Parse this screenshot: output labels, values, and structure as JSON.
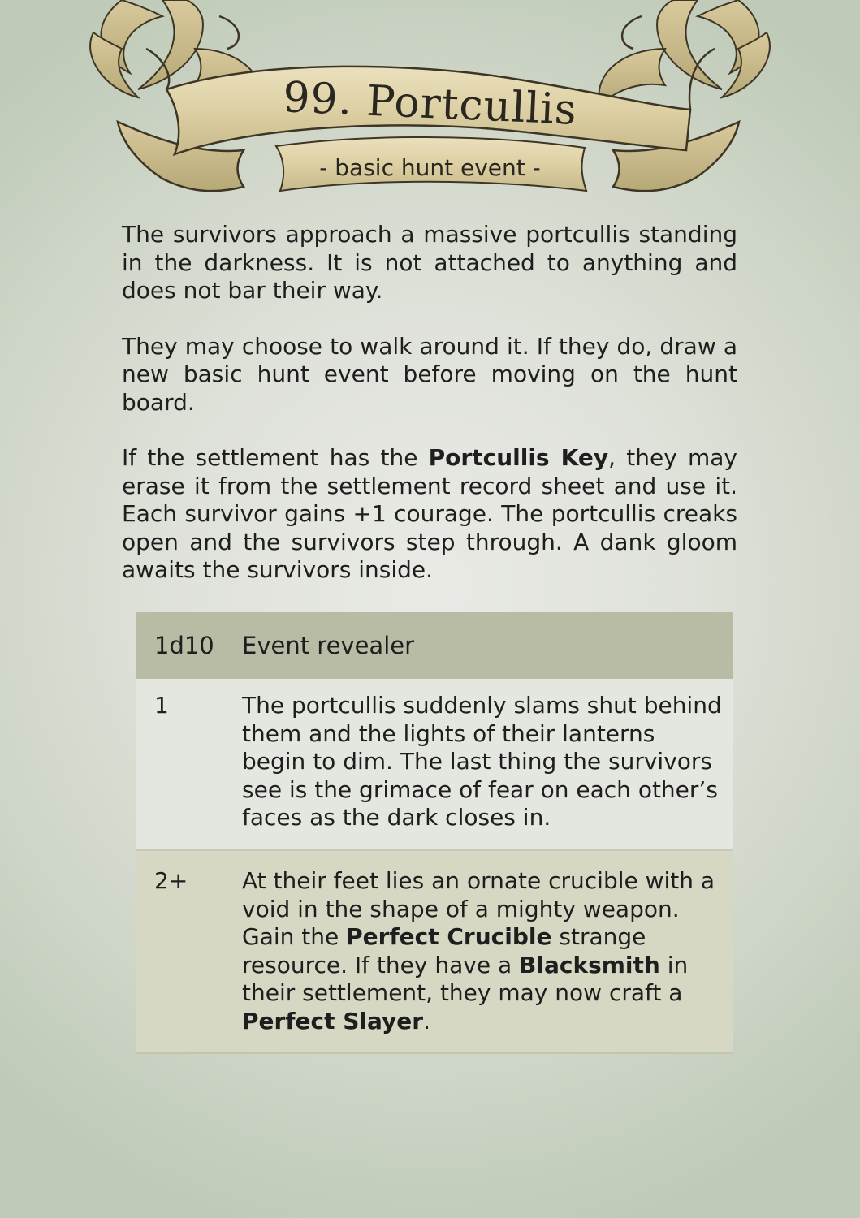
{
  "header": {
    "title": "99. Portcullis",
    "subtitle": "- basic hunt event -"
  },
  "body": {
    "para1": "The survivors approach a massive portcullis standing in the darkness. It is not attached to anything and does not bar their way.",
    "para2": "They may choose to walk around it. If they do, draw a new basic hunt event before moving on the hunt board.",
    "para3_pre": "If the settlement has the ",
    "para3_bold": "Portcullis Key",
    "para3_post": ", they may erase it from the settlement record sheet and use it. Each survivor gains +1 courage. The portcullis creaks open and the survivors step through. A dank gloom awaits the survivors inside."
  },
  "table": {
    "col1_header": "1d10",
    "col2_header": "Event revealer",
    "rows": [
      {
        "roll": "1",
        "text": "The portcullis suddenly slams shut behind them and the lights of their lanterns begin to dim. The last thing the survivors see is the grimace of fear on each other’s faces as the dark closes in."
      },
      {
        "roll": "2+",
        "t1": "At their feet lies an ornate crucible with a void in the shape of a mighty weapon. Gain the ",
        "b1": "Perfect Crucible",
        "t2": " strange resource. If they have a ",
        "b2": "Blacksmith",
        "t3": " in their settlement, they may now craft a ",
        "b3": "Perfect Slayer",
        "t4": "."
      }
    ]
  }
}
